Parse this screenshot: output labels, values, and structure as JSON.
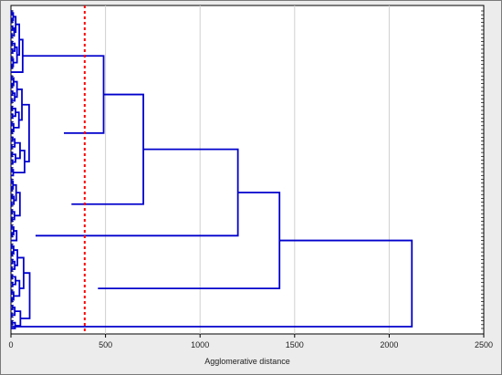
{
  "chart_data": {
    "type": "dendrogram",
    "orientation": "horizontal",
    "xlabel": "Agglomerative distance",
    "xlim": [
      0,
      2500
    ],
    "x_ticks": [
      0,
      500,
      1000,
      1500,
      2000,
      2500
    ],
    "grid": "vertical gridlines at x ticks",
    "cut_line": {
      "x": 390,
      "style": "dotted",
      "color": "#ff0000"
    },
    "line_color": "#0000cc",
    "leaf_count": 84,
    "merges": [
      {
        "leaf_range": [
          0,
          16
        ],
        "heights": [
          30,
          60,
          20,
          35,
          15,
          45
        ]
      },
      {
        "leaf_range": [
          17,
          43
        ],
        "heights": [
          40,
          80,
          120,
          60,
          30,
          280
        ]
      },
      {
        "leaf_range": [
          44,
          55
        ],
        "heights": [
          25,
          50,
          100,
          320
        ]
      },
      {
        "leaf_range": [
          56,
          60
        ],
        "heights": [
          40,
          130
        ]
      },
      {
        "leaf_range": [
          61,
          83
        ],
        "heights": [
          20,
          40,
          70,
          110,
          130,
          180,
          460
        ]
      },
      {
        "upper_links": [
          490,
          700,
          1200,
          1420,
          2120
        ]
      }
    ]
  }
}
